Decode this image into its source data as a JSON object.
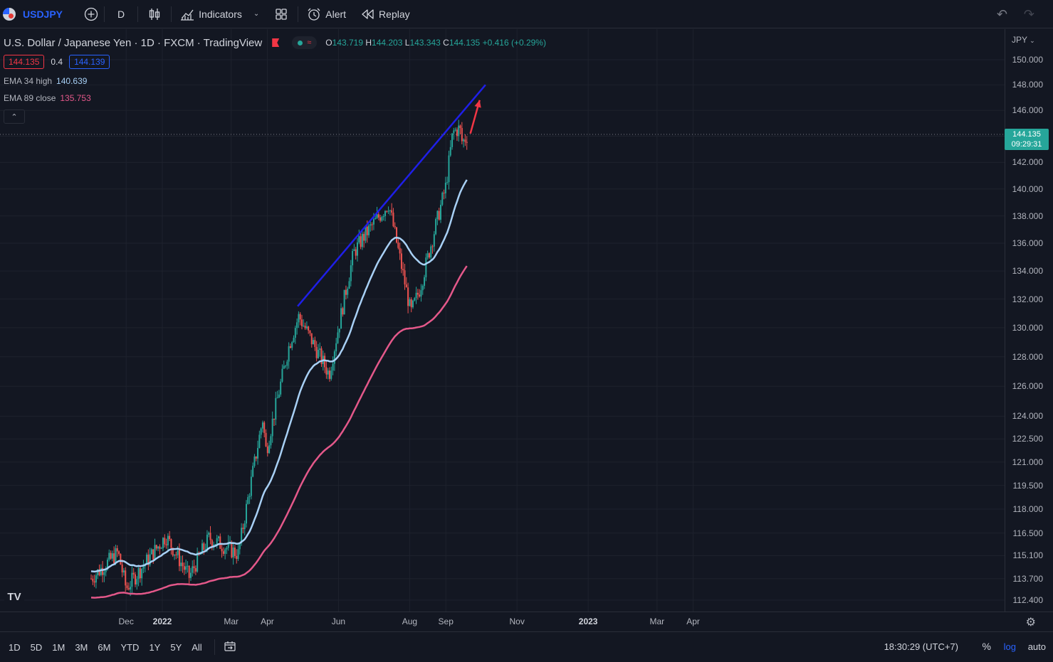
{
  "topbar": {
    "symbol": "USDJPY",
    "interval": "D",
    "indicators_label": "Indicators",
    "alert_label": "Alert",
    "replay_label": "Replay"
  },
  "legend": {
    "title": "U.S. Dollar / Japanese Yen · 1D · FXCM · TradingView",
    "ohlc": [
      {
        "k": "O",
        "v": "143.719"
      },
      {
        "k": "H",
        "v": "144.203"
      },
      {
        "k": "L",
        "v": "143.343"
      },
      {
        "k": "C",
        "v": "144.135"
      }
    ],
    "change": "+0.416 (+0.29%)",
    "bid": "144.135",
    "spread": "0.4",
    "ask": "144.139",
    "ema1_name": "EMA 34 high",
    "ema1_value": "140.639",
    "ema2_name": "EMA 89 close",
    "ema2_value": "135.753"
  },
  "price_axis": {
    "currency": "JPY",
    "current_price": "144.135",
    "countdown": "09:29:31",
    "ticks": [
      "150.000",
      "148.000",
      "146.000",
      "144.000",
      "142.000",
      "140.000",
      "138.000",
      "136.000",
      "134.000",
      "132.000",
      "130.000",
      "128.000",
      "126.000",
      "124.000",
      "122.500",
      "121.000",
      "119.500",
      "118.000",
      "116.500",
      "115.100",
      "113.700",
      "112.400"
    ]
  },
  "time_axis": {
    "ticks": [
      "Dec",
      "2022",
      "Mar",
      "Apr",
      "Jun",
      "Aug",
      "Sep",
      "Nov",
      "2023",
      "Mar",
      "Apr"
    ]
  },
  "bottombar": {
    "ranges": [
      "1D",
      "5D",
      "1M",
      "3M",
      "6M",
      "YTD",
      "1Y",
      "5Y",
      "All"
    ],
    "clock": "18:30:29 (UTC+7)",
    "percent_label": "%",
    "log_label": "log",
    "auto_label": "auto"
  },
  "colors": {
    "background": "#131722",
    "up": "#26a69a",
    "down": "#ef5350",
    "ema34": "#a8d0f5",
    "ema89": "#e4588a",
    "trendline": "#1f1fe8",
    "arrow": "#f23645"
  },
  "chart_data": {
    "type": "candlestick",
    "symbol": "USDJPY",
    "timeframe": "1D",
    "scale": "log",
    "ylim": [
      111.5,
      151.5
    ],
    "series": [
      {
        "name": "USDJPY",
        "key_points": [
          {
            "date": "2021-11-01",
            "close": 113.7
          },
          {
            "date": "2021-11-24",
            "close": 115.3
          },
          {
            "date": "2021-12-01",
            "close": 113.1
          },
          {
            "date": "2022-01-04",
            "close": 116.3
          },
          {
            "date": "2022-01-24",
            "close": 113.8
          },
          {
            "date": "2022-02-10",
            "close": 116.2
          },
          {
            "date": "2022-03-07",
            "close": 115.2
          },
          {
            "date": "2022-03-28",
            "close": 123.8
          },
          {
            "date": "2022-03-31",
            "close": 121.7
          },
          {
            "date": "2022-04-20",
            "close": 128.9
          },
          {
            "date": "2022-04-28",
            "close": 130.8
          },
          {
            "date": "2022-05-24",
            "close": 126.8
          },
          {
            "date": "2022-06-14",
            "close": 135.3
          },
          {
            "date": "2022-06-22",
            "close": 136.4
          },
          {
            "date": "2022-07-14",
            "close": 138.9
          },
          {
            "date": "2022-08-02",
            "close": 131.0
          },
          {
            "date": "2022-08-10",
            "close": 132.8
          },
          {
            "date": "2022-09-01",
            "close": 140.2
          },
          {
            "date": "2022-09-07",
            "close": 144.3
          },
          {
            "date": "2022-09-13",
            "close": 144.6
          },
          {
            "date": "2022-09-15",
            "close": 143.5
          },
          {
            "date": "2022-09-20",
            "close": 144.135
          }
        ]
      },
      {
        "name": "EMA 34 high",
        "last": 140.639
      },
      {
        "name": "EMA 89 close",
        "last": 135.753
      }
    ],
    "annotations": [
      {
        "type": "trendline",
        "from": {
          "date": "2022-04-27",
          "price": 131.5
        },
        "to": {
          "date": "2022-10-05",
          "price": 148.0
        }
      },
      {
        "type": "arrow",
        "from": {
          "date": "2022-09-22",
          "price": 144.2
        },
        "to": {
          "date": "2022-09-30",
          "price": 146.8
        }
      }
    ]
  }
}
